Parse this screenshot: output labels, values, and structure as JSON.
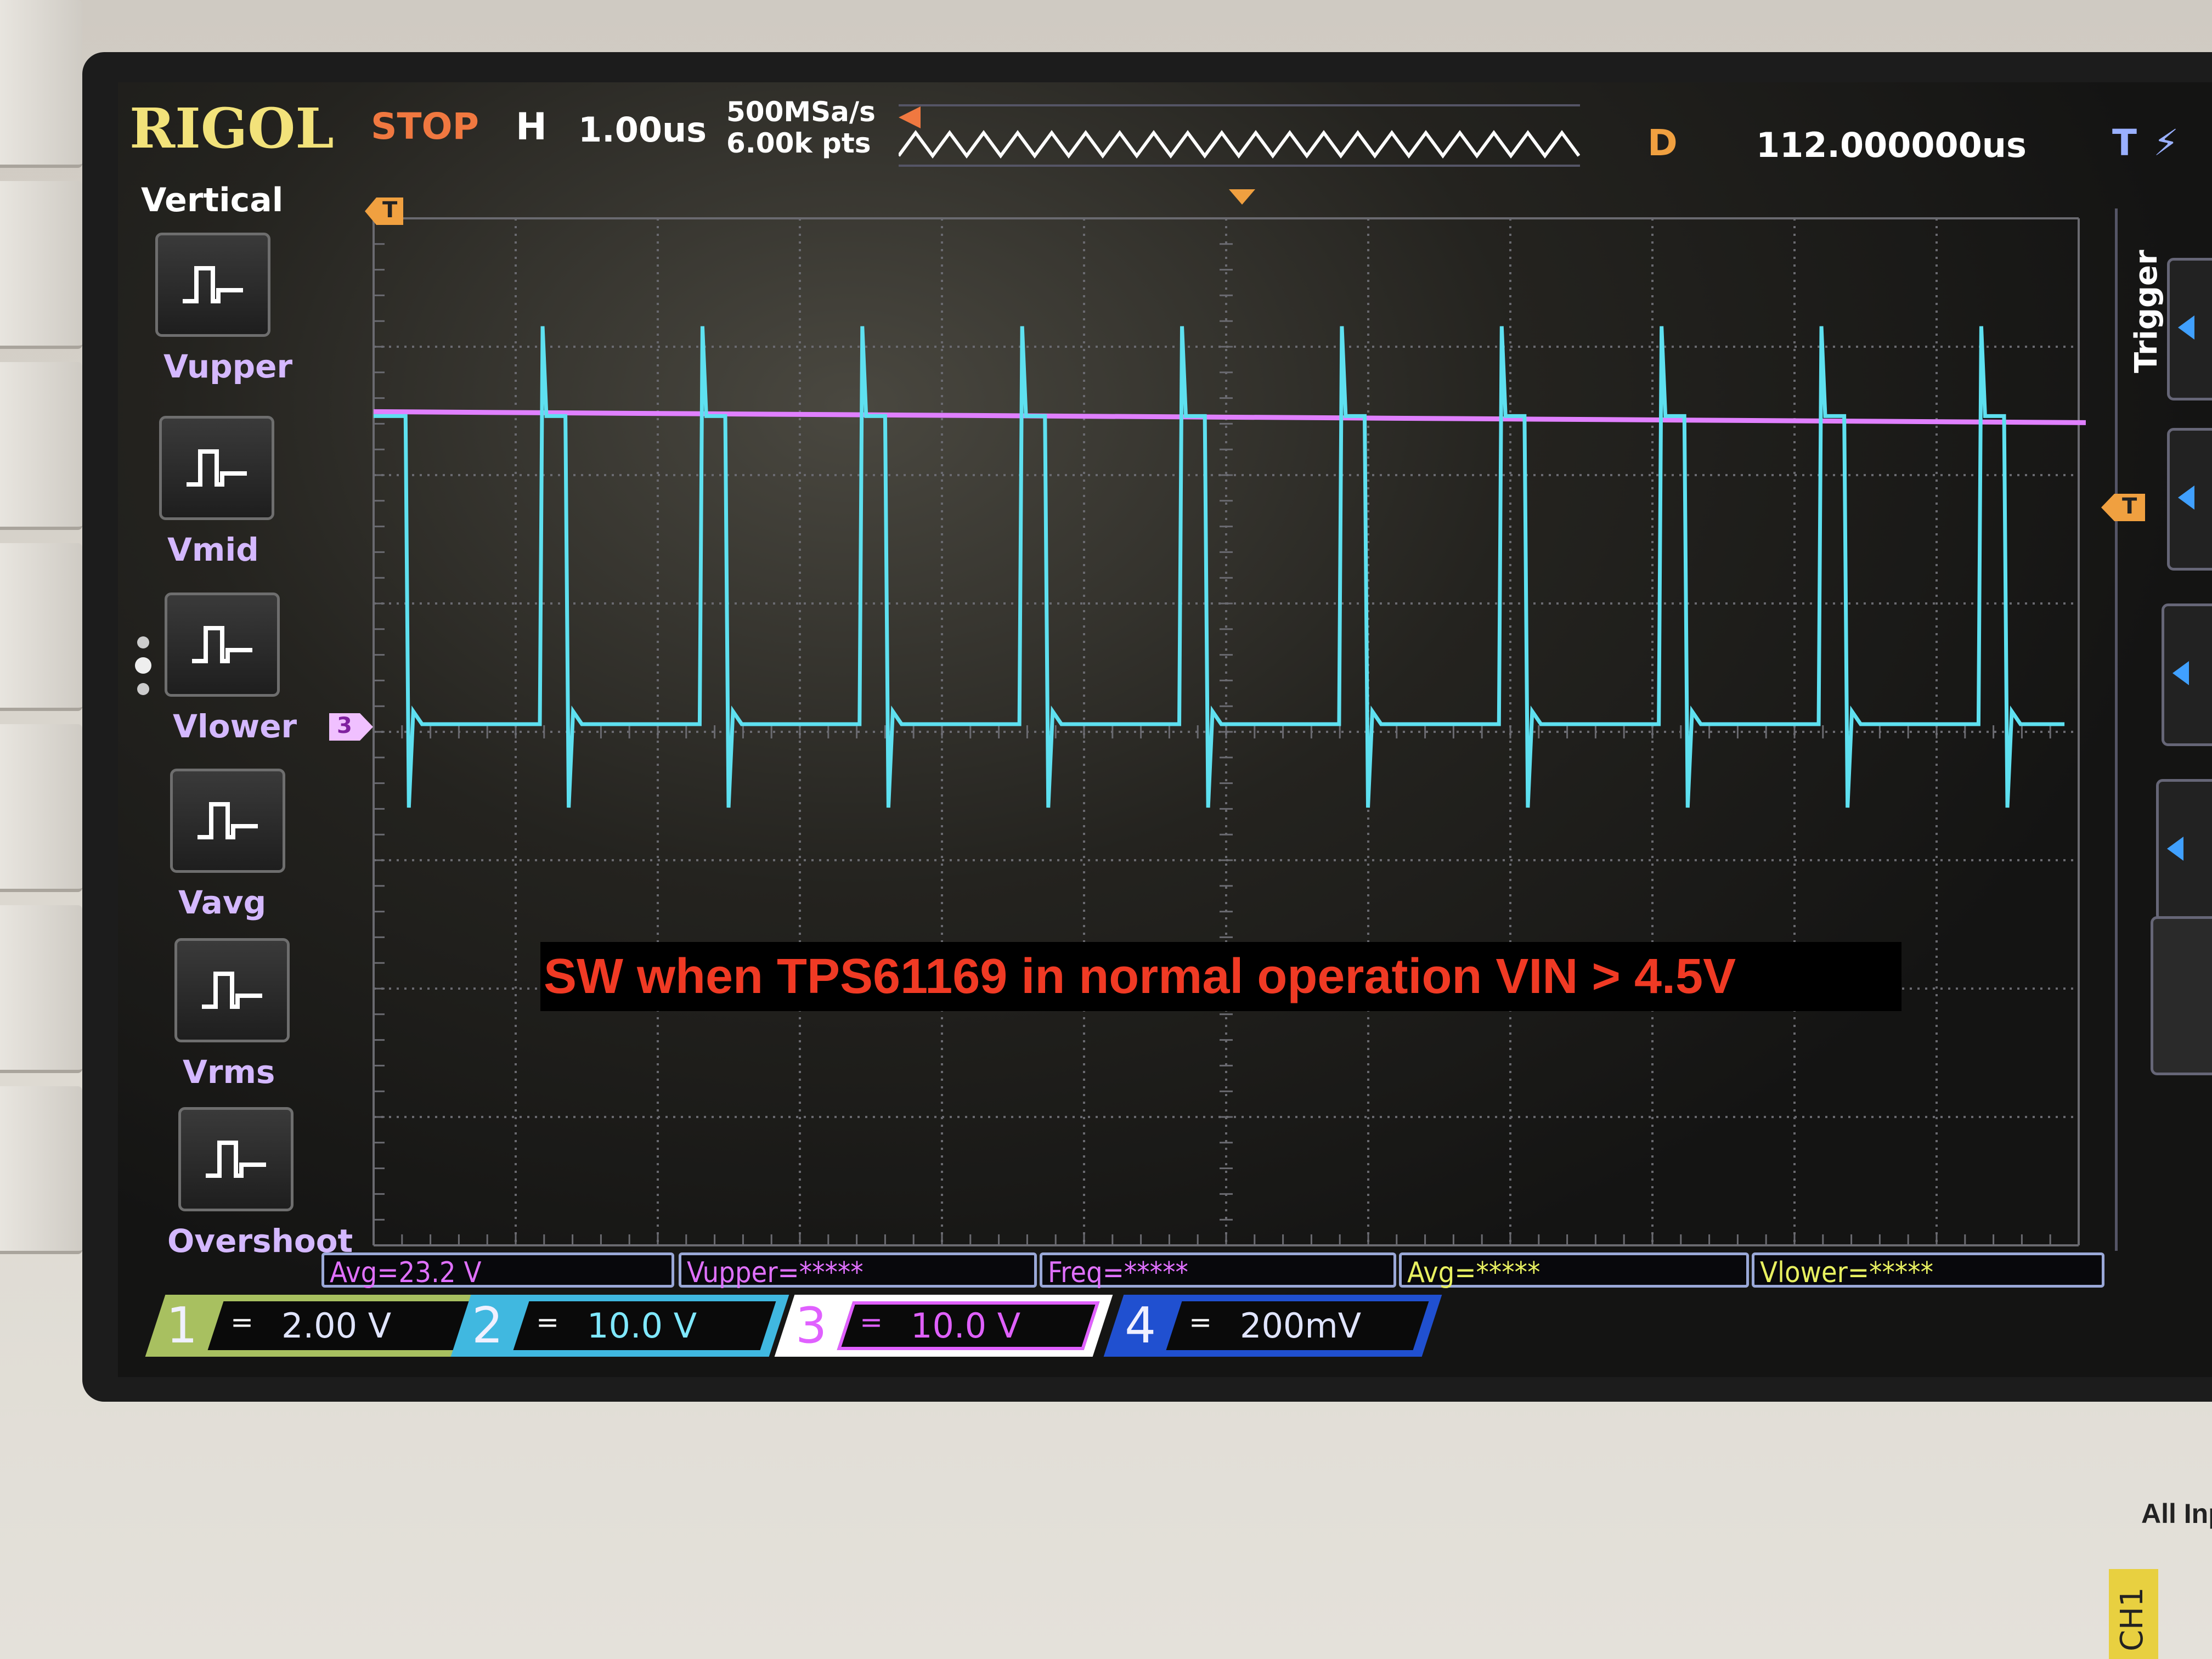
{
  "header": {
    "brand": "RIGOL",
    "run_state": "STOP",
    "timebase_label": "H",
    "timebase": "1.00us",
    "sample_rate": "500MSa/s",
    "memory_depth": "6.00k pts",
    "delay_label": "D",
    "delay": "112.000000us",
    "trigger_icon": "T"
  },
  "menu": {
    "title": "Vertical",
    "items": [
      {
        "label": "Vupper",
        "icon": "pulse-upper-icon"
      },
      {
        "label": "Vmid",
        "icon": "pulse-mid-icon"
      },
      {
        "label": "Vlower",
        "icon": "pulse-lower-icon"
      },
      {
        "label": "Vavg",
        "icon": "sine-avg-icon"
      },
      {
        "label": "Vrms",
        "icon": "sine-rms-icon"
      },
      {
        "label": "Overshoot",
        "icon": "overshoot-icon"
      }
    ]
  },
  "right_panel": {
    "title": "Trigger"
  },
  "markers": {
    "trigger_left": "T",
    "trigger_right": "T",
    "channel_ref": "3"
  },
  "annotation": "SW when TPS61169 in normal operation VIN > 4.5V",
  "measurements": [
    {
      "text": "Avg=23.2 V",
      "color": "#e070ff"
    },
    {
      "text": "Vupper=*****",
      "color": "#e070ff"
    },
    {
      "text": "Freq=*****",
      "color": "#e070ff"
    },
    {
      "text": "Avg=*****",
      "color": "#e8f060"
    },
    {
      "text": "Vlower=*****",
      "color": "#e8f060"
    }
  ],
  "channels": [
    {
      "num": "1",
      "coupling": "=",
      "scale": "2.00 V",
      "color": "#a8c060"
    },
    {
      "num": "2",
      "coupling": "=",
      "scale": "10.0 V",
      "color": "#40b8e0"
    },
    {
      "num": "3",
      "coupling": "=",
      "scale": "10.0 V",
      "color": "#e060ff"
    },
    {
      "num": "4",
      "coupling": "=",
      "scale": "200mV",
      "color": "#2050d0"
    }
  ],
  "waveforms": {
    "time_center_us": 112,
    "time_per_div_us": 1.0,
    "ch2": {
      "color": "#5ee0f0",
      "low_v": 0,
      "high_v": 24,
      "period_us": 1.125,
      "high_us": 0.18,
      "first_rise_us": 107.17,
      "spike_up_v": 31,
      "spike_down_v": -6.5
    },
    "ch3": {
      "color": "#e080ff",
      "level_v": 24
    }
  },
  "panel_labels": {
    "input_label": "All Inp",
    "channel_tag": "CH1"
  }
}
